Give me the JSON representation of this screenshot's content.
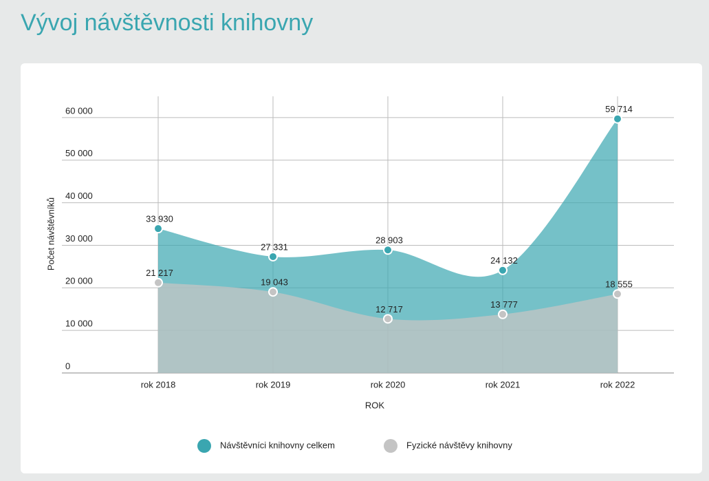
{
  "chart_data": {
    "type": "area",
    "title": "Vývoj návštěvnosti knihovny",
    "ylabel": "Počet návštěvníků",
    "xlabel": "ROK",
    "categories": [
      "rok 2018",
      "rok 2019",
      "rok 2020",
      "rok 2021",
      "rok 2022"
    ],
    "series": [
      {
        "name": "Návštěvníci knihovny celkem",
        "color": "#3aa6b0",
        "values": [
          33930,
          27331,
          28903,
          24132,
          59714
        ],
        "value_labels": [
          "33 930",
          "27 331",
          "28 903",
          "24 132",
          "59 714"
        ]
      },
      {
        "name": "Fyzické návštěvy knihovny",
        "color": "#c4c4c4",
        "values": [
          21217,
          19043,
          12717,
          13777,
          18555
        ],
        "value_labels": [
          "21 217",
          "19 043",
          "12 717",
          "13 777",
          "18 555"
        ]
      }
    ],
    "ylim": [
      0,
      65000
    ],
    "yticks": [
      0,
      {
        "value": 10000,
        "label": "10 000"
      },
      {
        "value": 20000,
        "label": "20 000"
      },
      {
        "value": 30000,
        "label": "30 000"
      },
      {
        "value": 40000,
        "label": "40 000"
      },
      {
        "value": 50000,
        "label": "50 000"
      },
      {
        "value": 60000,
        "label": "60 000"
      }
    ],
    "grid": true,
    "legend": "bottom"
  }
}
